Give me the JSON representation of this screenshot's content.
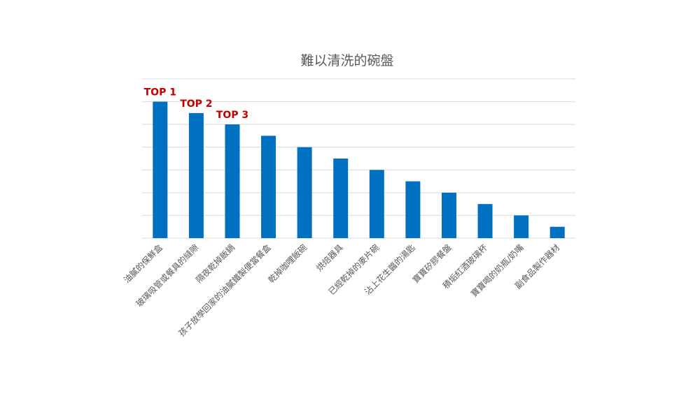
{
  "chart_data": {
    "type": "bar",
    "title": "難以清洗的碗盤",
    "xlabel": "",
    "ylabel": "",
    "categories": [
      "油膩的保鮮盒",
      "玻璃吸管或餐具的縫隙",
      "隔夜乾掉飯鍋",
      "孩子放學回家的油膩鐵製便當餐盒",
      "乾掉咖哩飯碗",
      "烘焙器具",
      "已經乾掉的麥片碗",
      "沾上花生醬的湯匙",
      "寶寶矽膠餐盤",
      "積垢紅酒玻璃杯",
      "寶寶喝的奶瓶/奶嘴",
      "副食品製作器材"
    ],
    "values": [
      12,
      11,
      10,
      9,
      8,
      7,
      6,
      5,
      4,
      3,
      2,
      1
    ],
    "ylim": [
      0,
      14
    ],
    "grid": true,
    "legend": "none",
    "annotations": [
      "TOP 1",
      "TOP 2",
      "TOP 3"
    ]
  },
  "colors": {
    "bar": "#0070C0",
    "annotation": "#C00000",
    "grid": "#D9D9D9",
    "text": "#595959"
  }
}
